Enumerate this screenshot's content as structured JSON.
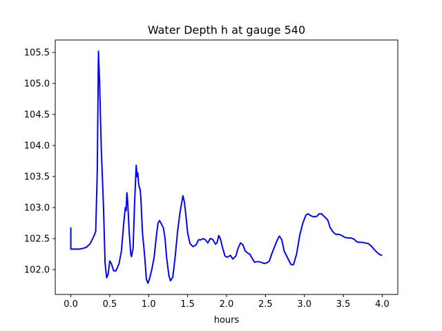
{
  "chart_data": {
    "type": "line",
    "title": "Water Depth h at gauge 540",
    "xlabel": "hours",
    "ylabel": "",
    "xlim": [
      -0.2,
      4.2
    ],
    "ylim": [
      101.6,
      105.7
    ],
    "x_ticks": [
      0.0,
      0.5,
      1.0,
      1.5,
      2.0,
      2.5,
      3.0,
      3.5,
      4.0
    ],
    "x_tick_labels": [
      "0.0",
      "0.5",
      "1.0",
      "1.5",
      "2.0",
      "2.5",
      "3.0",
      "3.5",
      "4.0"
    ],
    "y_ticks": [
      102.0,
      102.5,
      103.0,
      103.5,
      104.0,
      104.5,
      105.0,
      105.5
    ],
    "y_tick_labels": [
      "102.0",
      "102.5",
      "103.0",
      "103.5",
      "104.0",
      "104.5",
      "105.0",
      "105.5"
    ],
    "grid": false,
    "series": [
      {
        "color": "#0000ff",
        "points": [
          [
            0.0,
            102.68
          ],
          [
            0.0,
            102.33
          ],
          [
            0.05,
            102.33
          ],
          [
            0.1,
            102.33
          ],
          [
            0.15,
            102.34
          ],
          [
            0.2,
            102.36
          ],
          [
            0.25,
            102.42
          ],
          [
            0.3,
            102.55
          ],
          [
            0.32,
            102.62
          ],
          [
            0.34,
            103.6
          ],
          [
            0.355,
            105.52
          ],
          [
            0.37,
            105.0
          ],
          [
            0.39,
            104.0
          ],
          [
            0.42,
            103.0
          ],
          [
            0.44,
            102.1
          ],
          [
            0.46,
            101.87
          ],
          [
            0.48,
            101.93
          ],
          [
            0.5,
            102.14
          ],
          [
            0.52,
            102.1
          ],
          [
            0.55,
            101.98
          ],
          [
            0.58,
            101.98
          ],
          [
            0.62,
            102.1
          ],
          [
            0.65,
            102.3
          ],
          [
            0.68,
            102.75
          ],
          [
            0.7,
            103.0
          ],
          [
            0.71,
            102.95
          ],
          [
            0.72,
            103.24
          ],
          [
            0.73,
            103.1
          ],
          [
            0.75,
            102.6
          ],
          [
            0.77,
            102.25
          ],
          [
            0.78,
            102.21
          ],
          [
            0.8,
            102.35
          ],
          [
            0.82,
            103.1
          ],
          [
            0.84,
            103.68
          ],
          [
            0.85,
            103.5
          ],
          [
            0.86,
            103.56
          ],
          [
            0.87,
            103.4
          ],
          [
            0.88,
            103.32
          ],
          [
            0.89,
            103.3
          ],
          [
            0.9,
            103.15
          ],
          [
            0.92,
            102.6
          ],
          [
            0.95,
            102.2
          ],
          [
            0.97,
            101.85
          ],
          [
            0.99,
            101.78
          ],
          [
            1.01,
            101.85
          ],
          [
            1.04,
            102.0
          ],
          [
            1.07,
            102.2
          ],
          [
            1.1,
            102.55
          ],
          [
            1.12,
            102.75
          ],
          [
            1.14,
            102.79
          ],
          [
            1.17,
            102.72
          ],
          [
            1.19,
            102.67
          ],
          [
            1.21,
            102.5
          ],
          [
            1.23,
            102.2
          ],
          [
            1.26,
            101.9
          ],
          [
            1.28,
            101.82
          ],
          [
            1.31,
            101.88
          ],
          [
            1.34,
            102.2
          ],
          [
            1.37,
            102.6
          ],
          [
            1.4,
            102.9
          ],
          [
            1.42,
            103.05
          ],
          [
            1.44,
            103.19
          ],
          [
            1.46,
            103.08
          ],
          [
            1.48,
            102.85
          ],
          [
            1.5,
            102.6
          ],
          [
            1.53,
            102.42
          ],
          [
            1.57,
            102.37
          ],
          [
            1.61,
            102.4
          ],
          [
            1.64,
            102.48
          ],
          [
            1.67,
            102.48
          ],
          [
            1.7,
            102.5
          ],
          [
            1.73,
            102.48
          ],
          [
            1.76,
            102.43
          ],
          [
            1.79,
            102.5
          ],
          [
            1.82,
            102.49
          ],
          [
            1.86,
            102.41
          ],
          [
            1.88,
            102.44
          ],
          [
            1.9,
            102.55
          ],
          [
            1.92,
            102.5
          ],
          [
            1.95,
            102.35
          ],
          [
            1.98,
            102.22
          ],
          [
            2.01,
            102.2
          ],
          [
            2.05,
            102.23
          ],
          [
            2.08,
            102.17
          ],
          [
            2.12,
            102.22
          ],
          [
            2.15,
            102.35
          ],
          [
            2.18,
            102.43
          ],
          [
            2.21,
            102.4
          ],
          [
            2.24,
            102.3
          ],
          [
            2.28,
            102.26
          ],
          [
            2.3,
            102.25
          ],
          [
            2.33,
            102.18
          ],
          [
            2.36,
            102.12
          ],
          [
            2.4,
            102.13
          ],
          [
            2.44,
            102.12
          ],
          [
            2.48,
            102.1
          ],
          [
            2.52,
            102.11
          ],
          [
            2.55,
            102.14
          ],
          [
            2.58,
            102.25
          ],
          [
            2.62,
            102.38
          ],
          [
            2.66,
            102.5
          ],
          [
            2.68,
            102.54
          ],
          [
            2.71,
            102.48
          ],
          [
            2.74,
            102.3
          ],
          [
            2.78,
            102.2
          ],
          [
            2.8,
            102.15
          ],
          [
            2.83,
            102.08
          ],
          [
            2.86,
            102.08
          ],
          [
            2.9,
            102.25
          ],
          [
            2.94,
            102.55
          ],
          [
            2.98,
            102.75
          ],
          [
            3.02,
            102.88
          ],
          [
            3.05,
            102.9
          ],
          [
            3.08,
            102.87
          ],
          [
            3.12,
            102.85
          ],
          [
            3.16,
            102.86
          ],
          [
            3.19,
            102.9
          ],
          [
            3.22,
            102.9
          ],
          [
            3.26,
            102.85
          ],
          [
            3.3,
            102.8
          ],
          [
            3.33,
            102.68
          ],
          [
            3.36,
            102.62
          ],
          [
            3.4,
            102.57
          ],
          [
            3.44,
            102.57
          ],
          [
            3.48,
            102.55
          ],
          [
            3.52,
            102.52
          ],
          [
            3.56,
            102.51
          ],
          [
            3.6,
            102.51
          ],
          [
            3.64,
            102.49
          ],
          [
            3.67,
            102.45
          ],
          [
            3.7,
            102.44
          ],
          [
            3.74,
            102.44
          ],
          [
            3.78,
            102.43
          ],
          [
            3.82,
            102.42
          ],
          [
            3.86,
            102.38
          ],
          [
            3.9,
            102.32
          ],
          [
            3.94,
            102.27
          ],
          [
            3.97,
            102.24
          ],
          [
            4.0,
            102.23
          ]
        ]
      }
    ]
  }
}
